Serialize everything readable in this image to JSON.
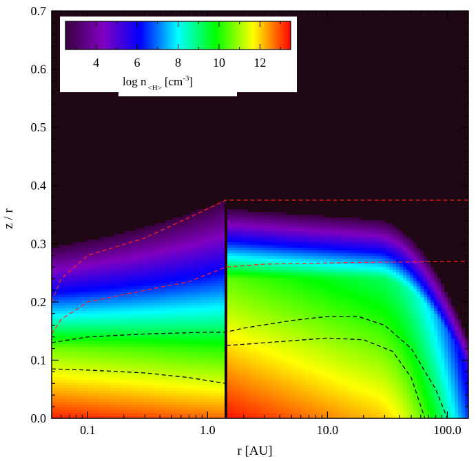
{
  "chart_data": {
    "type": "heatmap",
    "xlabel": "r [AU]",
    "ylabel": "z / r",
    "x_scale": "log",
    "xlim": [
      0.05,
      150
    ],
    "ylim": [
      0.0,
      0.7
    ],
    "x_ticks": [
      {
        "value": 0.1,
        "label": "0.1"
      },
      {
        "value": 1.0,
        "label": "1.0"
      },
      {
        "value": 10.0,
        "label": "10.0"
      },
      {
        "value": 100.0,
        "label": "100.0"
      }
    ],
    "y_ticks": [
      {
        "value": 0.0,
        "label": "0.0"
      },
      {
        "value": 0.1,
        "label": "0.1"
      },
      {
        "value": 0.2,
        "label": "0.2"
      },
      {
        "value": 0.3,
        "label": "0.3"
      },
      {
        "value": 0.4,
        "label": "0.4"
      },
      {
        "value": 0.5,
        "label": "0.5"
      },
      {
        "value": 0.6,
        "label": "0.6"
      },
      {
        "value": 0.7,
        "label": "0.7"
      }
    ],
    "background_color": "#1f0714",
    "colorbar": {
      "range": [
        2.5,
        13.5
      ],
      "ticks": [
        {
          "value": 4,
          "label": "4"
        },
        {
          "value": 6,
          "label": "6"
        },
        {
          "value": 8,
          "label": "8"
        },
        {
          "value": 10,
          "label": "10"
        },
        {
          "value": 12,
          "label": "12"
        }
      ],
      "label_main": "log n",
      "label_sub": "<H>",
      "label_unit_a": "[cm",
      "label_sup": "-3",
      "label_unit_b": "]",
      "colors": [
        "#3a0040",
        "#8000c0",
        "#0000ff",
        "#00ffff",
        "#00ff00",
        "#ffff00",
        "#ff0000"
      ]
    },
    "split_r": 1.42,
    "contours": [
      {
        "name": "",
        "color": "#ff2020",
        "points": [
          [
            0.05,
            0.2
          ],
          [
            0.06,
            0.24
          ],
          [
            0.1,
            0.28
          ],
          [
            0.3,
            0.31
          ],
          [
            0.7,
            0.345
          ],
          [
            1.42,
            0.375
          ],
          [
            150,
            0.375
          ]
        ]
      },
      {
        "name": "",
        "color": "#ff2020",
        "points": [
          [
            0.05,
            0.145
          ],
          [
            0.06,
            0.17
          ],
          [
            0.1,
            0.2
          ],
          [
            0.3,
            0.22
          ],
          [
            0.7,
            0.235
          ],
          [
            1.42,
            0.26
          ],
          [
            3,
            0.265
          ],
          [
            20,
            0.268
          ],
          [
            60,
            0.269
          ],
          [
            150,
            0.27
          ]
        ]
      },
      {
        "name": "",
        "color": "#000000",
        "points": [
          [
            0.05,
            0.13
          ],
          [
            0.1,
            0.14
          ],
          [
            0.3,
            0.145
          ],
          [
            1.0,
            0.148
          ],
          [
            1.42,
            0.148
          ],
          [
            2,
            0.155
          ],
          [
            5,
            0.168
          ],
          [
            10,
            0.175
          ],
          [
            18,
            0.175
          ],
          [
            30,
            0.16
          ],
          [
            50,
            0.12
          ],
          [
            80,
            0.05
          ],
          [
            100,
            0.0
          ]
        ]
      },
      {
        "name": "",
        "color": "#000000",
        "points": [
          [
            0.05,
            0.085
          ],
          [
            0.1,
            0.083
          ],
          [
            0.3,
            0.078
          ],
          [
            0.7,
            0.07
          ],
          [
            1.42,
            0.06
          ],
          [
            1.42,
            0.125
          ],
          [
            3,
            0.13
          ],
          [
            10,
            0.138
          ],
          [
            20,
            0.135
          ],
          [
            35,
            0.115
          ],
          [
            50,
            0.07
          ],
          [
            65,
            0.0
          ]
        ]
      }
    ]
  }
}
